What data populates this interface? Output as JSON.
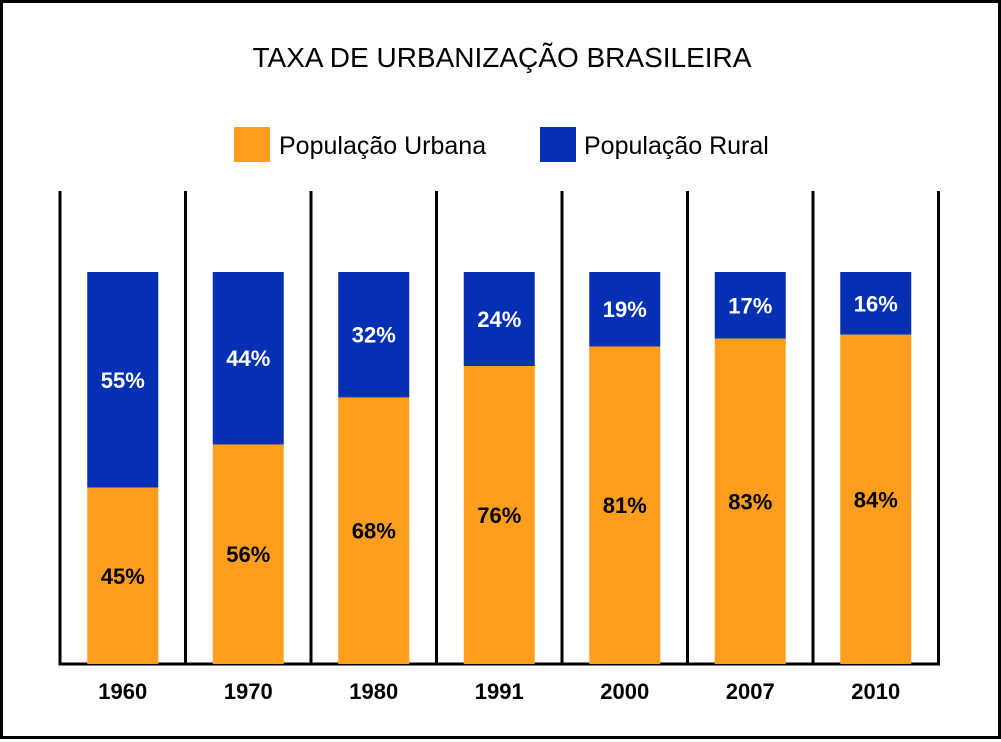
{
  "chart_data": {
    "type": "bar",
    "stacked": true,
    "title": "TAXA DE URBANIZAÇÃO BRASILEIRA",
    "xlabel": "",
    "ylabel": "",
    "ylim": [
      0,
      100
    ],
    "grid": false,
    "legend_position": "top-center",
    "categories": [
      "1960",
      "1970",
      "1980",
      "1991",
      "2000",
      "2007",
      "2010"
    ],
    "series": [
      {
        "name": "População Urbana",
        "color": "#FF9E1E",
        "values": [
          45,
          56,
          68,
          76,
          81,
          83,
          84
        ],
        "labels": [
          "45%",
          "56%",
          "68%",
          "76%",
          "81%",
          "83%",
          "84%"
        ]
      },
      {
        "name": "População Rural",
        "color": "#0530B3",
        "values": [
          55,
          44,
          32,
          24,
          19,
          17,
          16
        ],
        "labels": [
          "55%",
          "44%",
          "32%",
          "24%",
          "19%",
          "17%",
          "16%"
        ]
      }
    ]
  }
}
